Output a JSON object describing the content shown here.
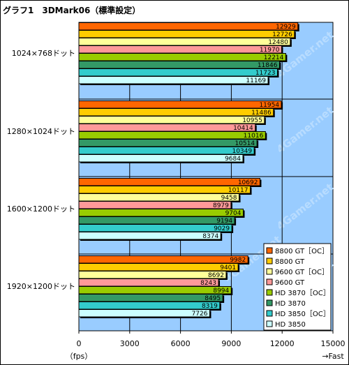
{
  "title": "グラフ1　3DMark06（標準設定）",
  "watermark": "4Gamer.net",
  "chart_data": {
    "type": "bar",
    "orientation": "horizontal",
    "title": "グラフ1　3DMark06（標準設定）",
    "xlabel_unit": "（fps）",
    "xlabel_direction": "→Fast",
    "xlim": [
      0,
      15000
    ],
    "xticks": [
      0,
      3000,
      6000,
      9000,
      12000,
      15000
    ],
    "grid": true,
    "legend_position": "bottom-right",
    "categories": [
      "1024×768ドット",
      "1280×1024ドット",
      "1600×1200ドット",
      "1920×1200ドット"
    ],
    "series": [
      {
        "name": "8800 GT［OC］",
        "color": "#ff6600",
        "values": [
          12929,
          11954,
          10692,
          9982
        ]
      },
      {
        "name": "8800 GT",
        "color": "#ffcc00",
        "values": [
          12726,
          11486,
          10117,
          9401
        ]
      },
      {
        "name": "9600 GT［OC］",
        "color": "#ffff99",
        "values": [
          12480,
          10955,
          9458,
          8692
        ]
      },
      {
        "name": "9600 GT",
        "color": "#ff9999",
        "values": [
          11970,
          10414,
          8979,
          8243
        ]
      },
      {
        "name": "HD 3870［OC］",
        "color": "#99cc00",
        "values": [
          12214,
          11016,
          9704,
          8994
        ]
      },
      {
        "name": "HD 3870",
        "color": "#339966",
        "values": [
          11846,
          10514,
          9194,
          8495
        ]
      },
      {
        "name": "HD 3850［OC］",
        "color": "#33cccc",
        "values": [
          11723,
          10349,
          9029,
          8319
        ]
      },
      {
        "name": "HD 3850",
        "color": "#ccffff",
        "values": [
          11169,
          9684,
          8374,
          7726
        ]
      }
    ],
    "colors": {
      "plot_bg": "#99ccff",
      "frame": "#000000"
    }
  }
}
